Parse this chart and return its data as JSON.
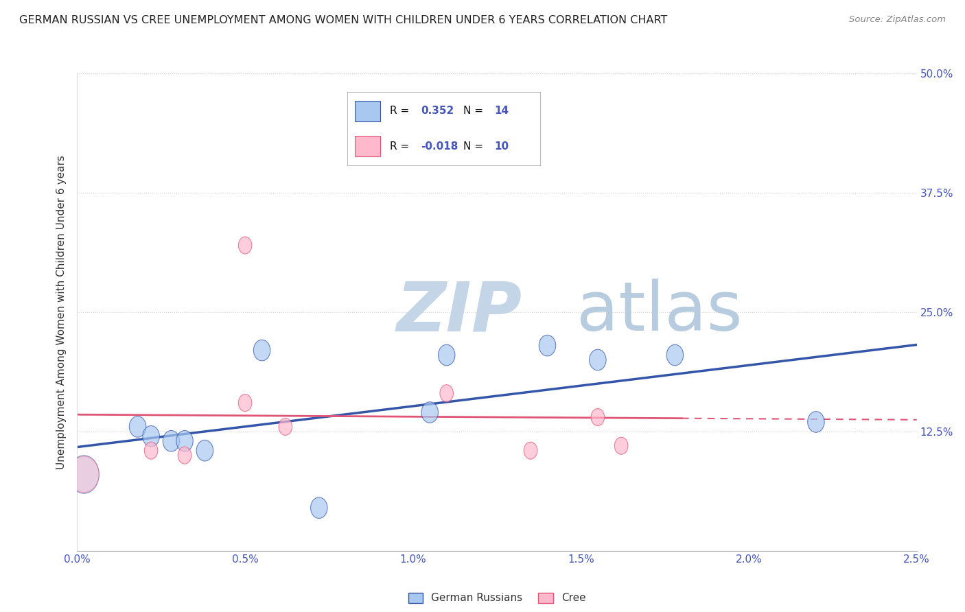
{
  "title": "GERMAN RUSSIAN VS CREE UNEMPLOYMENT AMONG WOMEN WITH CHILDREN UNDER 6 YEARS CORRELATION CHART",
  "source": "Source: ZipAtlas.com",
  "xlabel_vals": [
    0.0,
    0.5,
    1.0,
    1.5,
    2.0,
    2.5
  ],
  "ylabel_vals": [
    0,
    12.5,
    25.0,
    37.5,
    50.0
  ],
  "xlim": [
    0.0,
    2.5
  ],
  "ylim": [
    0,
    50
  ],
  "german_russian_x": [
    0.02,
    0.18,
    0.22,
    0.28,
    0.32,
    0.38,
    0.55,
    0.72,
    1.05,
    1.1,
    1.4,
    1.55,
    1.78,
    2.2
  ],
  "german_russian_y": [
    8.0,
    13.0,
    12.0,
    11.5,
    11.5,
    10.5,
    21.0,
    4.5,
    14.5,
    20.5,
    21.5,
    20.0,
    20.5,
    13.5
  ],
  "cree_x": [
    0.02,
    0.22,
    0.32,
    0.5,
    0.5,
    0.62,
    1.1,
    1.35,
    1.55,
    1.62
  ],
  "cree_y": [
    8.0,
    10.5,
    10.0,
    15.5,
    32.0,
    13.0,
    16.5,
    10.5,
    14.0,
    11.0
  ],
  "gr_R": 0.352,
  "gr_N": 14,
  "cree_R": -0.018,
  "cree_N": 10,
  "gr_color": "#a8c8f0",
  "cree_color": "#ffb8cc",
  "gr_line_color": "#3355aa",
  "cree_line_color": "#e05575",
  "legend_label_gr": "German Russians",
  "legend_label_cree": "Cree",
  "watermark_zip": "ZIP",
  "watermark_atlas": "atlas",
  "watermark_color_zip": "#c5d5e8",
  "watermark_color_atlas": "#b8cce0",
  "background_color": "#ffffff",
  "title_color": "#222222",
  "axis_label_color": "#333333",
  "tick_color": "#4455bb",
  "grid_color": "#cccccc",
  "ylabel": "Unemployment Among Women with Children Under 6 years",
  "legend_r_color": "#4455bb",
  "legend_n_color": "#4455bb",
  "legend_text_color": "#111111"
}
